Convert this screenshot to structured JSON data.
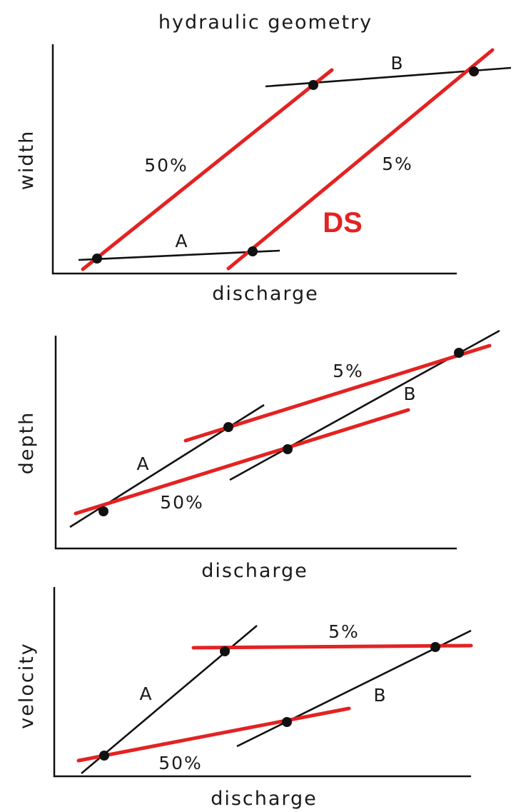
{
  "title": "hydraulic geometry",
  "colors": {
    "downstream": "#e32222",
    "at_station": "#111111"
  },
  "panels": [
    {
      "ylabel": "width",
      "xlabel": "discharge",
      "labels": {
        "a": "A",
        "b": "B",
        "p50": "50%",
        "p5": "5%",
        "ds": "DS"
      }
    },
    {
      "ylabel": "depth",
      "xlabel": "discharge",
      "labels": {
        "a": "A",
        "b": "B",
        "p50": "50%",
        "p5": "5%"
      }
    },
    {
      "ylabel": "velocity",
      "xlabel": "discharge",
      "labels": {
        "a": "A",
        "b": "B",
        "p50": "50%",
        "p5": "5%"
      }
    }
  ]
}
